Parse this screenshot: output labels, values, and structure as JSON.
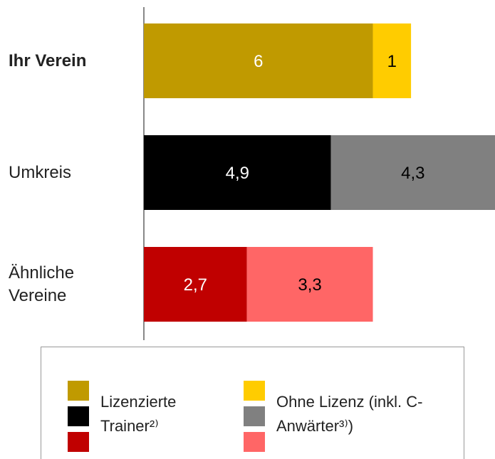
{
  "chart_data": {
    "type": "stacked_bar_horizontal",
    "categories": [
      "Ihr Verein",
      "Umkreis",
      "Ähnliche Vereine"
    ],
    "highlight_category": 0,
    "series": [
      {
        "name": "Lizenzierte Trainer²⁾",
        "colors": [
          "#c09a00",
          "#000000",
          "#c00000"
        ],
        "label_color": "#ffffff",
        "values": [
          6,
          4.9,
          2.7
        ],
        "value_labels": [
          "6",
          "4,9",
          "2,7"
        ]
      },
      {
        "name": "Ohne Lizenz (inkl. C-Anwärter³⁾)",
        "colors": [
          "#ffcc00",
          "#808080",
          "#ff6666"
        ],
        "label_color": "#000000",
        "values": [
          1,
          4.3,
          3.3
        ],
        "value_labels": [
          "1",
          "4,3",
          "3,3"
        ]
      }
    ],
    "xlim": [
      0,
      9.2
    ]
  }
}
